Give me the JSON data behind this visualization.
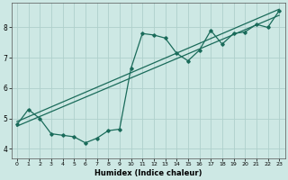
{
  "xlabel": "Humidex (Indice chaleur)",
  "bg_color": "#cde8e4",
  "line_color": "#1a6b5a",
  "grid_color": "#afd0cb",
  "xlim": [
    -0.5,
    23.5
  ],
  "ylim": [
    3.7,
    8.8
  ],
  "xticks": [
    0,
    1,
    2,
    3,
    4,
    5,
    6,
    7,
    8,
    9,
    10,
    11,
    12,
    13,
    14,
    15,
    16,
    17,
    18,
    19,
    20,
    21,
    22,
    23
  ],
  "yticks": [
    4,
    5,
    6,
    7,
    8
  ],
  "line1_x": [
    0,
    1,
    2,
    3,
    4,
    5,
    6,
    7,
    8,
    9,
    10,
    11,
    12,
    13,
    14,
    15,
    16,
    17,
    18,
    19,
    20,
    21,
    22,
    23
  ],
  "line1_y": [
    4.8,
    5.3,
    5.0,
    4.5,
    4.45,
    4.4,
    4.2,
    4.35,
    4.6,
    4.65,
    6.65,
    7.8,
    7.75,
    7.65,
    7.15,
    6.9,
    7.25,
    7.9,
    7.45,
    7.8,
    7.85,
    8.1,
    8.0,
    8.55
  ],
  "line2_x": [
    0,
    23
  ],
  "line2_y": [
    4.75,
    8.4
  ],
  "line3_x": [
    0,
    23
  ],
  "line3_y": [
    4.9,
    8.6
  ]
}
